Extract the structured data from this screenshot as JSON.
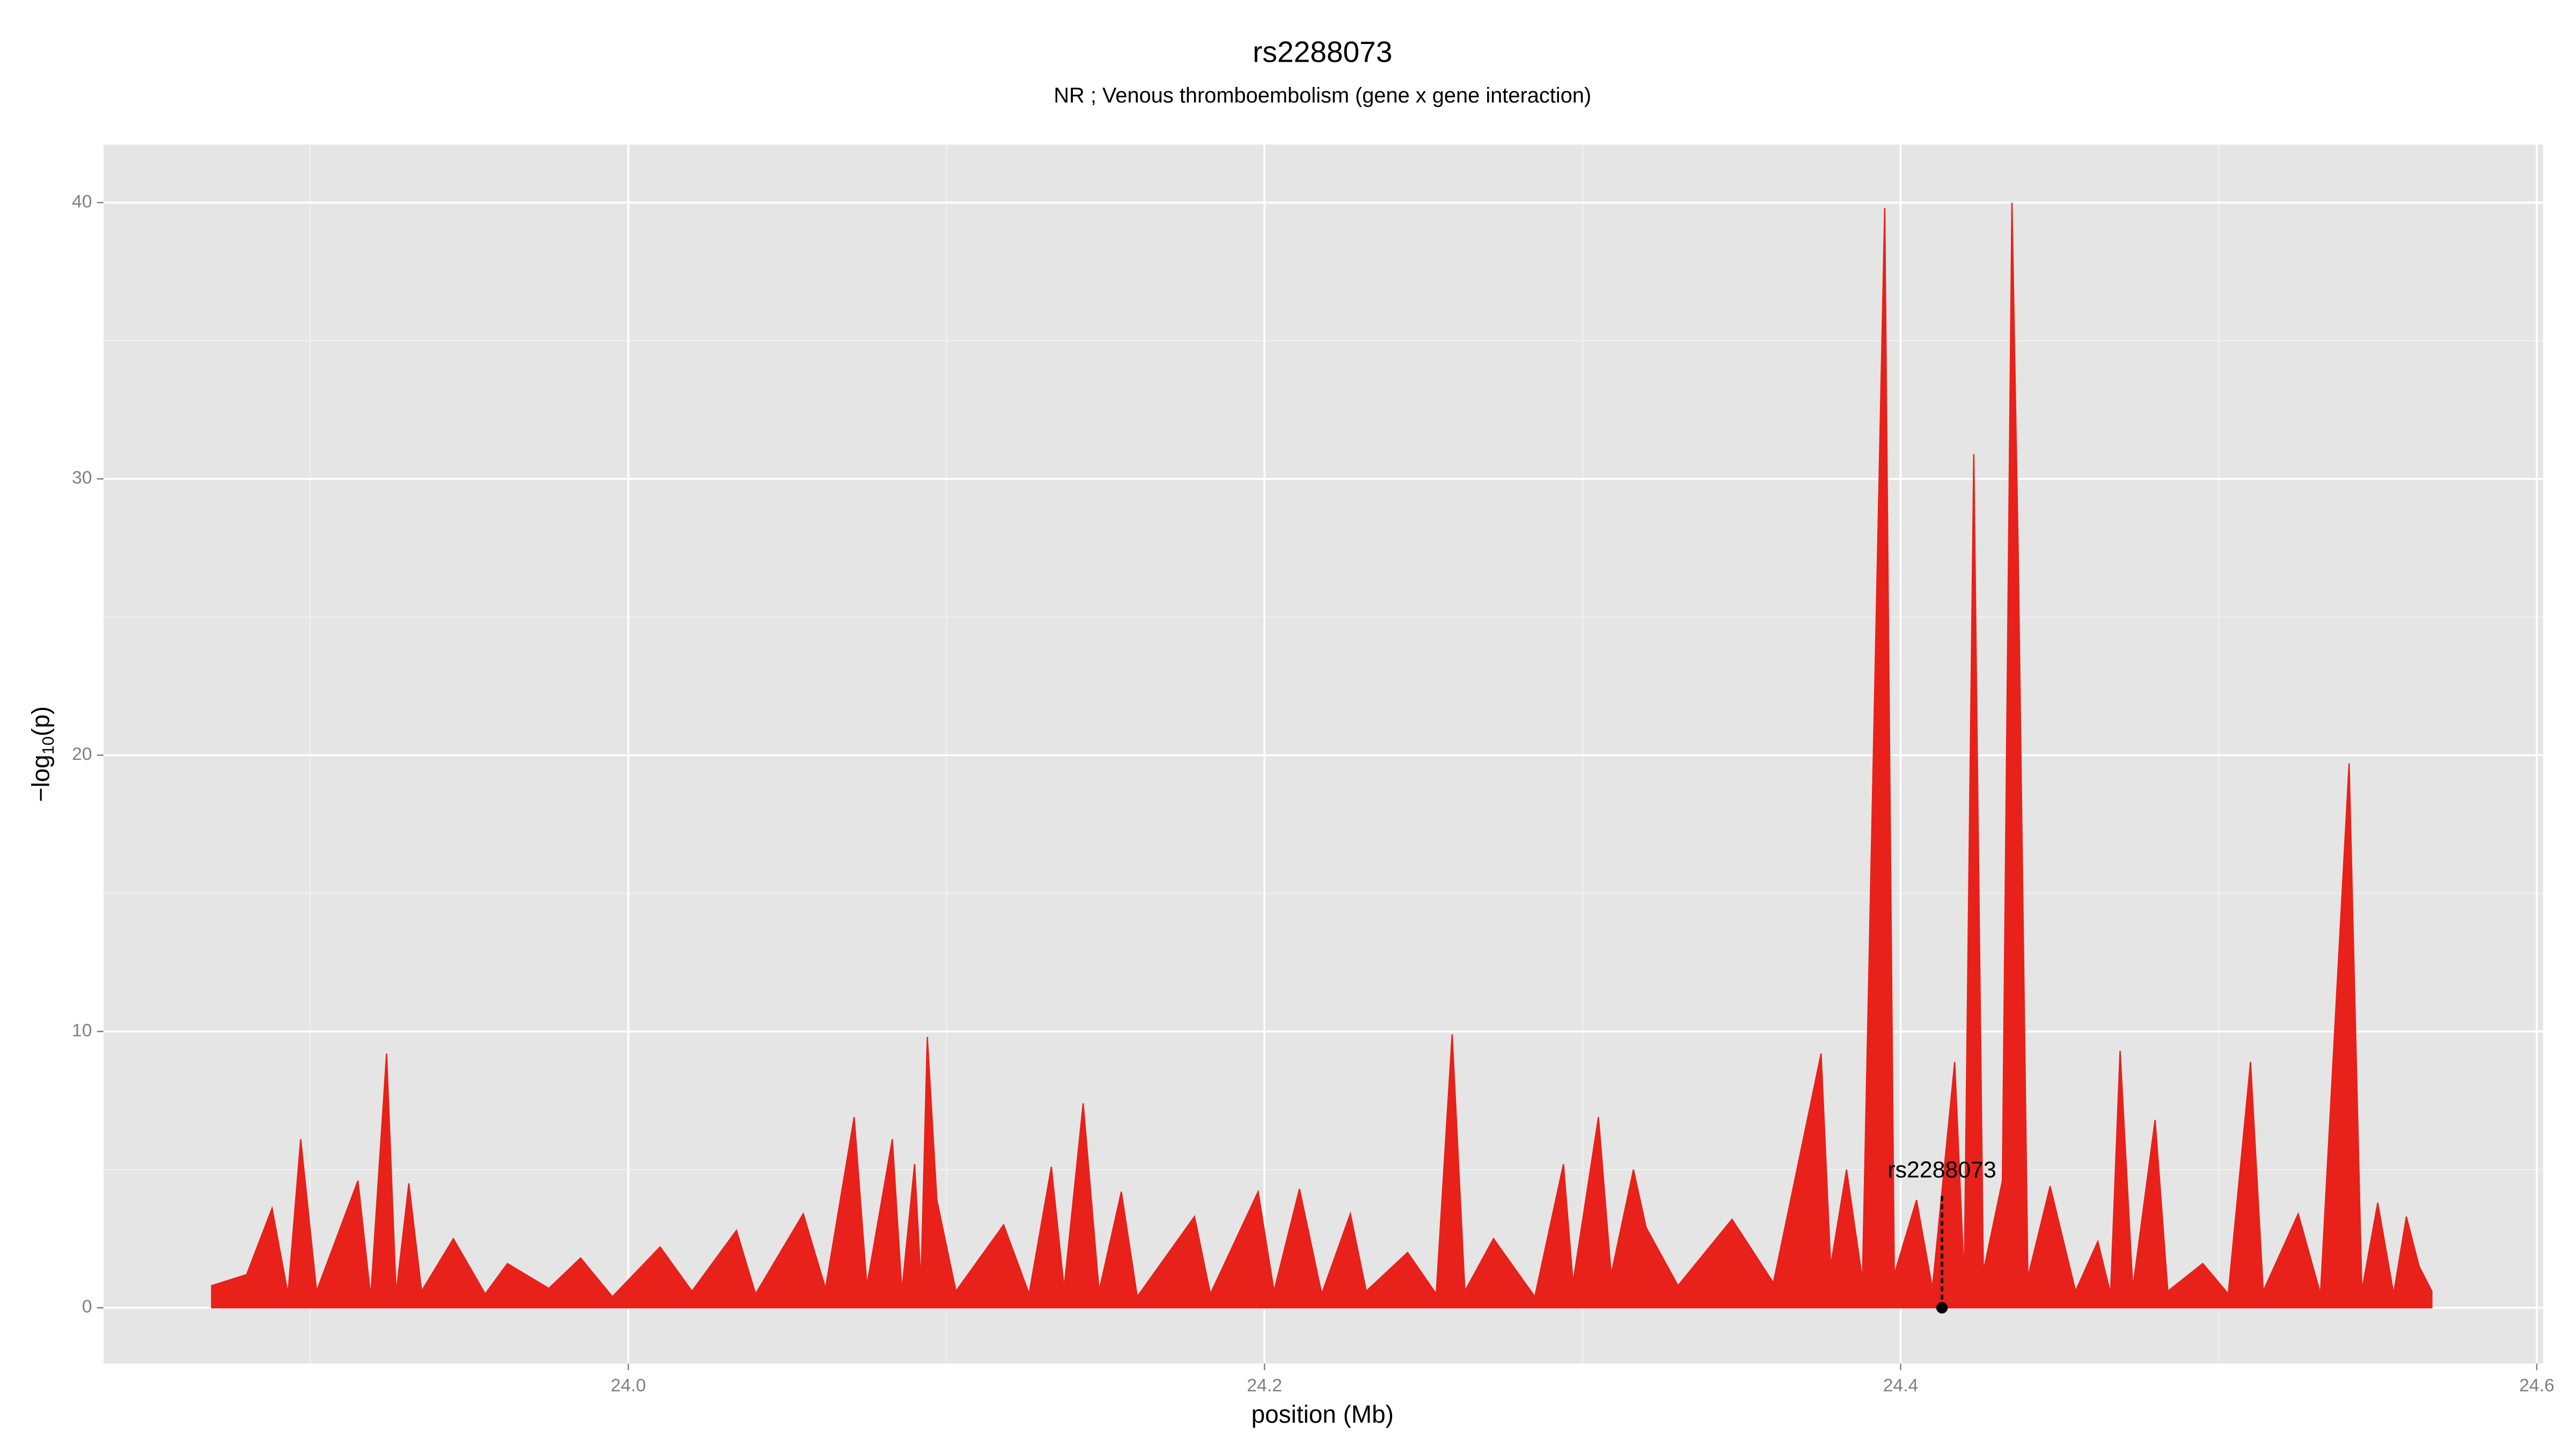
{
  "chart_data": {
    "type": "area",
    "title": "rs2288073",
    "subtitle": "NR ; Venous thromboembolism (gene x gene interaction)",
    "xlabel": "position (Mb)",
    "ylabel": {
      "text": "−log",
      "subscript": "10",
      "suffix": "(p)"
    },
    "xlim": [
      23.835,
      24.602
    ],
    "ylim": [
      -2.02,
      42.1
    ],
    "xticks": [
      {
        "value": 24,
        "label": "24.0"
      },
      24.2,
      24.4,
      24.6
    ],
    "yticks": [
      0,
      10,
      20,
      30,
      40
    ],
    "grid": true,
    "color": "#e8211a",
    "x": [
      23.869,
      23.88,
      23.888,
      23.893,
      23.897,
      23.902,
      23.915,
      23.919,
      23.924,
      23.927,
      23.931,
      23.935,
      23.945,
      23.955,
      23.962,
      23.975,
      23.985,
      23.995,
      24.01,
      24.02,
      24.034,
      24.04,
      24.055,
      24.062,
      24.071,
      24.075,
      24.083,
      24.086,
      24.09,
      24.092,
      24.094,
      24.097,
      24.103,
      24.118,
      24.126,
      24.133,
      24.137,
      24.143,
      24.148,
      24.155,
      24.16,
      24.178,
      24.183,
      24.198,
      24.203,
      24.211,
      24.218,
      24.227,
      24.232,
      24.245,
      24.254,
      24.259,
      24.263,
      24.272,
      24.285,
      24.294,
      24.297,
      24.305,
      24.309,
      24.316,
      24.32,
      24.33,
      24.347,
      24.36,
      24.375,
      24.378,
      24.383,
      24.388,
      24.395,
      24.398,
      24.405,
      24.41,
      24.417,
      24.42,
      24.423,
      24.426,
      24.432,
      24.435,
      24.437,
      24.44,
      24.447,
      24.455,
      24.462,
      24.466,
      24.469,
      24.473,
      24.48,
      24.484,
      24.495,
      24.503,
      24.51,
      24.514,
      24.525,
      24.532,
      24.541,
      24.545,
      24.55,
      24.555,
      24.559,
      24.563,
      24.567
    ],
    "values": [
      0.8,
      1.2,
      3.6,
      0.5,
      6.1,
      0.6,
      4.6,
      0.4,
      9.2,
      0.5,
      4.5,
      0.6,
      2.5,
      0.5,
      1.6,
      0.7,
      1.8,
      0.4,
      2.2,
      0.6,
      2.8,
      0.5,
      3.4,
      0.7,
      6.9,
      0.8,
      6.1,
      0.6,
      5.2,
      0.9,
      9.8,
      3.9,
      0.6,
      3.0,
      0.5,
      5.1,
      0.7,
      7.4,
      0.6,
      4.2,
      0.4,
      3.3,
      0.5,
      4.2,
      0.6,
      4.3,
      0.5,
      3.4,
      0.6,
      2.0,
      0.5,
      9.9,
      0.6,
      2.5,
      0.4,
      5.2,
      0.9,
      6.9,
      1.2,
      5.0,
      2.9,
      0.8,
      3.2,
      0.9,
      9.2,
      1.5,
      5.0,
      1.0,
      39.8,
      1.2,
      3.9,
      0.7,
      8.9,
      1.0,
      30.9,
      1.3,
      4.6,
      40.0,
      27.0,
      1.1,
      4.4,
      0.6,
      2.4,
      0.5,
      9.3,
      0.7,
      6.8,
      0.6,
      1.6,
      0.5,
      8.9,
      0.6,
      3.4,
      0.5,
      19.7,
      0.6,
      3.8,
      0.5,
      3.3,
      1.5,
      0.6
    ],
    "annotation": {
      "label": "rs2288073",
      "x": 24.413,
      "y": 0
    }
  }
}
